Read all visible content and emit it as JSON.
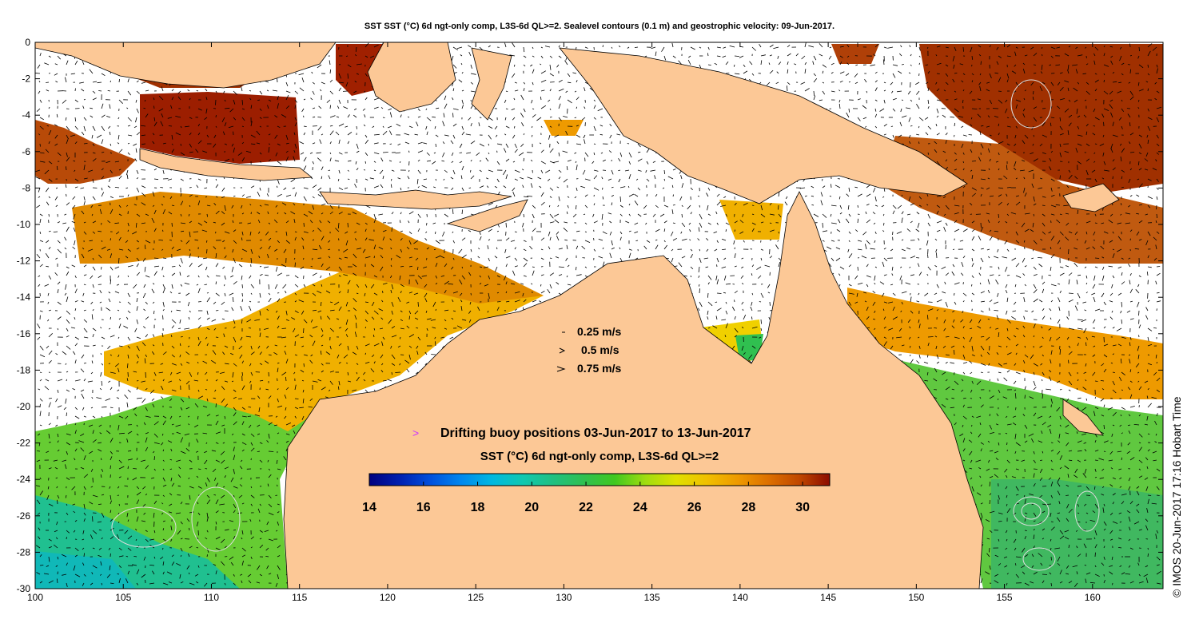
{
  "title": "SST SST (°C) 6d ngt-only comp, L3S-6d QL>=2. Sealevel contours (0.1 m) and geostrophic velocity: 09-Jun-2017.",
  "credit": "© IMOS 20-Jun-2017 17:16 Hobart Time",
  "x_ticks": [
    "100",
    "105",
    "110",
    "115",
    "120",
    "125",
    "130",
    "135",
    "140",
    "145",
    "150",
    "155",
    "160"
  ],
  "y_ticks": [
    "0",
    "-2",
    "-4",
    "-6",
    "-8",
    "-10",
    "-12",
    "-14",
    "-16",
    "-18",
    "-20",
    "-22",
    "-24",
    "-26",
    "-28",
    "-30"
  ],
  "map_extent": {
    "lon": [
      100,
      164
    ],
    "lat": [
      -30,
      0
    ]
  },
  "velocity_legend": [
    {
      "label": "0.25 m/s",
      "speed": 0.25
    },
    {
      "label": "0.5 m/s",
      "speed": 0.5
    },
    {
      "label": "0.75 m/s",
      "speed": 0.75
    }
  ],
  "buoy_legend": {
    "symbol": ">",
    "label": "Drifting buoy positions 03-Jun-2017 to 13-Jun-2017",
    "color": "#cc33ff"
  },
  "colorbar": {
    "title": "SST (°C) 6d ngt-only comp, L3S-6d QL>=2",
    "range": [
      14,
      31
    ],
    "ticks": [
      "14",
      "16",
      "18",
      "20",
      "22",
      "24",
      "26",
      "28",
      "30"
    ],
    "colors": [
      "#00007f",
      "#0020b0",
      "#0050dd",
      "#0088ee",
      "#00b8e0",
      "#10c8b0",
      "#20c080",
      "#30c050",
      "#40c820",
      "#a0dd10",
      "#e0e000",
      "#f0c000",
      "#ee9a00",
      "#dd7000",
      "#c04800",
      "#8c0c00"
    ]
  },
  "colors": {
    "land": "#fcc896",
    "no_data": "#ffffff",
    "sealevel_contour": "#dddddd",
    "vector": "#000000"
  }
}
